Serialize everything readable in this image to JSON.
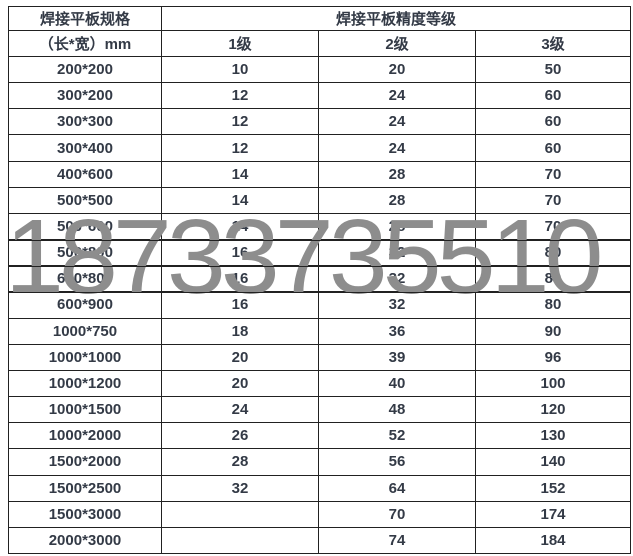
{
  "table": {
    "spec_header": "焊接平板规格",
    "spec_subheader": "（长*宽）mm",
    "precision_header": "焊接平板精度等级",
    "grade_headers": [
      "1级",
      "2级",
      "3级"
    ],
    "rows": [
      [
        "200*200",
        "10",
        "20",
        "50"
      ],
      [
        "300*200",
        "12",
        "24",
        "60"
      ],
      [
        "300*300",
        "12",
        "24",
        "60"
      ],
      [
        "300*400",
        "12",
        "24",
        "60"
      ],
      [
        "400*600",
        "14",
        "28",
        "70"
      ],
      [
        "500*500",
        "14",
        "28",
        "70"
      ],
      [
        "500*600",
        "14",
        "28",
        "70"
      ],
      [
        "500*800",
        "16",
        "32",
        "80"
      ],
      [
        "600*800",
        "16",
        "32",
        "80"
      ],
      [
        "600*900",
        "16",
        "32",
        "80"
      ],
      [
        "1000*750",
        "18",
        "36",
        "90"
      ],
      [
        "1000*1000",
        "20",
        "39",
        "96"
      ],
      [
        "1000*1200",
        "20",
        "40",
        "100"
      ],
      [
        "1000*1500",
        "24",
        "48",
        "120"
      ],
      [
        "1000*2000",
        "26",
        "52",
        "130"
      ],
      [
        "1500*2000",
        "28",
        "56",
        "140"
      ],
      [
        "1500*2500",
        "32",
        "64",
        "152"
      ],
      [
        "1500*3000",
        "",
        "70",
        "174"
      ],
      [
        "2000*3000",
        "",
        "74",
        "184"
      ]
    ]
  },
  "watermark": {
    "text": "18733735510",
    "color": "#8d8d8d"
  },
  "colors": {
    "text": "#333a46",
    "border": "#212121",
    "background": "#ffffff"
  }
}
